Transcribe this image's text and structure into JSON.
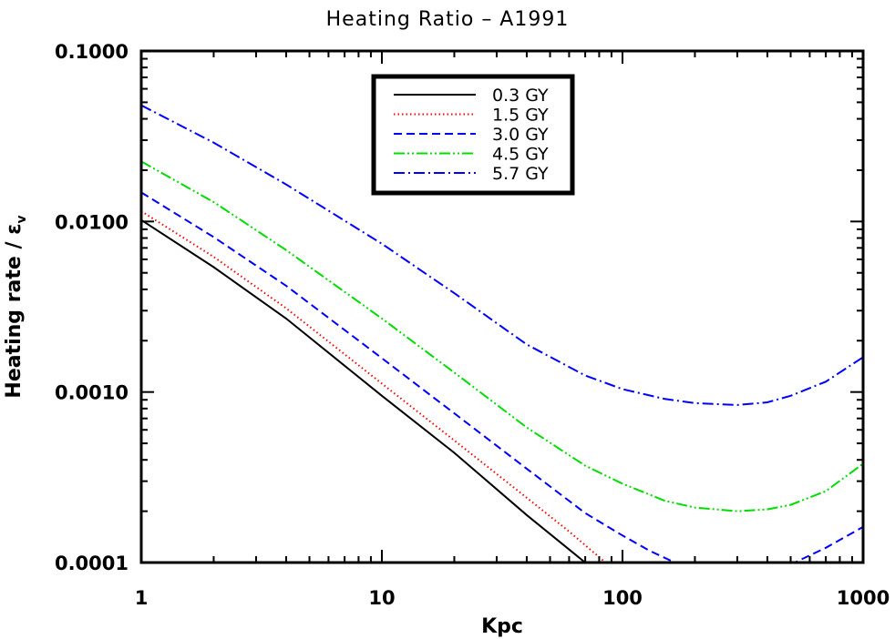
{
  "chart_data": {
    "type": "line",
    "title": "Heating  Ratio  –  A1991",
    "xlabel": "Kpc",
    "ylabel": "Heating rate / ε",
    "ylabel_subscript": "v",
    "xscale": "log",
    "yscale": "log",
    "xlim": [
      1,
      1000
    ],
    "ylim": [
      0.0001,
      0.1
    ],
    "xticks": [
      1,
      10,
      100,
      1000
    ],
    "xtick_labels": [
      "1",
      "10",
      "100",
      "1000"
    ],
    "yticks": [
      0.0001,
      0.001,
      0.01,
      0.1
    ],
    "ytick_labels": [
      "0.0001",
      "0.0010",
      "0.0100",
      "0.1000"
    ],
    "grid": false,
    "legend_position": "top-center",
    "series": [
      {
        "name": "0.3 GY",
        "color": "#000000",
        "dash": "solid",
        "x": [
          1,
          2,
          4,
          10,
          20,
          40,
          70
        ],
        "y": [
          0.0102,
          0.0054,
          0.0027,
          0.00095,
          0.00044,
          0.00019,
          0.0001
        ]
      },
      {
        "name": "1.5 GY",
        "color": "#ff0000",
        "dash": "dotted",
        "x": [
          1,
          2,
          4,
          10,
          20,
          40,
          60,
          85
        ],
        "y": [
          0.0115,
          0.0062,
          0.0031,
          0.00112,
          0.00052,
          0.00024,
          0.000152,
          0.0001
        ]
      },
      {
        "name": "3.0 GY",
        "color": "#0000ff",
        "dash": "dashed",
        "x": [
          1,
          2,
          4,
          10,
          20,
          40,
          70,
          100,
          130,
          165,
          520,
          700,
          1000
        ],
        "y": [
          0.0148,
          0.0081,
          0.0042,
          0.00158,
          0.00075,
          0.000355,
          0.000195,
          0.000144,
          0.000117,
          0.0001,
          0.0001,
          0.000122,
          0.000162
        ]
      },
      {
        "name": "4.5 GY",
        "color": "#00dd00",
        "dash": "dash-dot-dot",
        "x": [
          1,
          2,
          4,
          10,
          20,
          40,
          70,
          100,
          150,
          200,
          300,
          400,
          500,
          700,
          1000
        ],
        "y": [
          0.0225,
          0.013,
          0.0068,
          0.0027,
          0.0013,
          0.00062,
          0.00037,
          0.00029,
          0.00023,
          0.00021,
          0.0002,
          0.000205,
          0.000218,
          0.000262,
          0.00038
        ]
      },
      {
        "name": "5.7 GY",
        "color": "#0000ff",
        "dash": "dash-dot",
        "x": [
          1,
          2,
          4,
          10,
          20,
          40,
          70,
          100,
          150,
          200,
          300,
          400,
          500,
          700,
          1000
        ],
        "y": [
          0.048,
          0.029,
          0.0165,
          0.0074,
          0.0038,
          0.0019,
          0.00125,
          0.00104,
          0.00091,
          0.00086,
          0.00084,
          0.00087,
          0.00095,
          0.00115,
          0.0016
        ]
      }
    ]
  }
}
